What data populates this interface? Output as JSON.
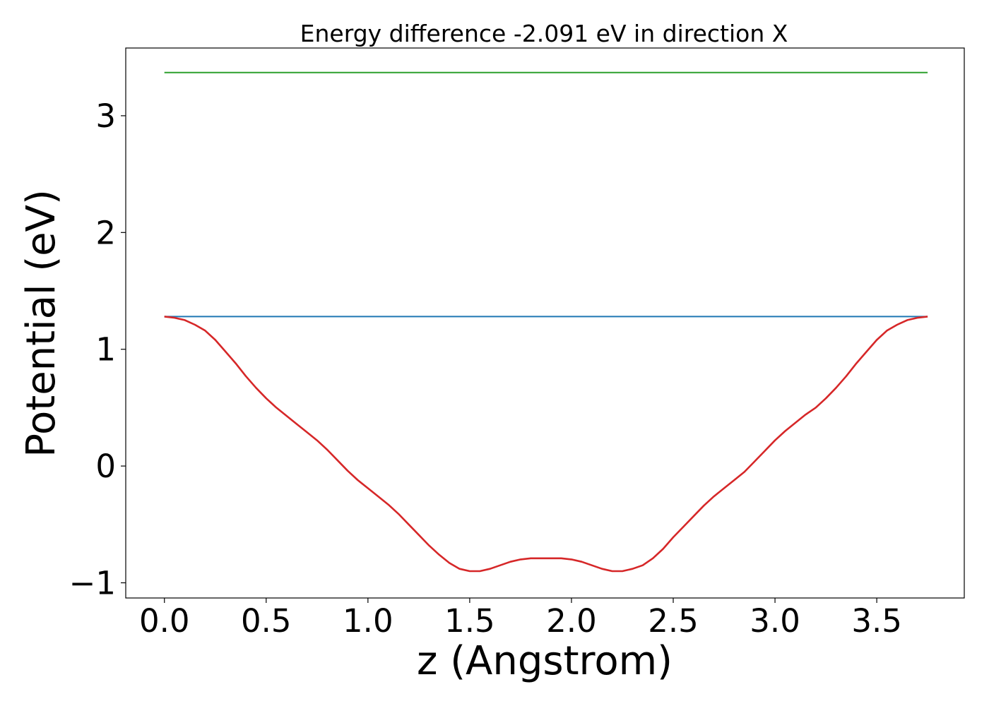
{
  "chart_data": {
    "type": "line",
    "title": "Energy difference -2.091 eV in direction X",
    "xlabel": "z (Angstrom)",
    "ylabel": "Potential (eV)",
    "xlim": [
      -0.19,
      3.93
    ],
    "ylim": [
      -1.13,
      3.58
    ],
    "xticks": [
      0.0,
      0.5,
      1.0,
      1.5,
      2.0,
      2.5,
      3.0,
      3.5
    ],
    "xtick_labels": [
      "0.0",
      "0.5",
      "1.0",
      "1.5",
      "2.0",
      "2.5",
      "3.0",
      "3.5"
    ],
    "yticks": [
      -1,
      0,
      1,
      2,
      3
    ],
    "ytick_labels": [
      "−1",
      "0",
      "1",
      "2",
      "3"
    ],
    "grid": false,
    "legend": "none",
    "series": [
      {
        "color": "#2ca02c",
        "x": [
          0.0,
          3.75
        ],
        "y": [
          3.37,
          3.37
        ]
      },
      {
        "color": "#1f77b4",
        "x": [
          0.0,
          3.75
        ],
        "y": [
          1.28,
          1.28
        ]
      },
      {
        "color": "#d62728",
        "x": [
          0.0,
          0.05,
          0.1,
          0.15,
          0.2,
          0.25,
          0.3,
          0.35,
          0.4,
          0.45,
          0.5,
          0.55,
          0.6,
          0.65,
          0.7,
          0.75,
          0.8,
          0.85,
          0.9,
          0.95,
          1.0,
          1.05,
          1.1,
          1.15,
          1.2,
          1.25,
          1.3,
          1.35,
          1.4,
          1.45,
          1.5,
          1.55,
          1.6,
          1.65,
          1.7,
          1.75,
          1.8,
          1.85,
          1.9,
          1.95,
          2.0,
          2.05,
          2.1,
          2.15,
          2.2,
          2.25,
          2.3,
          2.35,
          2.4,
          2.45,
          2.5,
          2.55,
          2.6,
          2.65,
          2.7,
          2.75,
          2.8,
          2.85,
          2.9,
          2.95,
          3.0,
          3.05,
          3.1,
          3.15,
          3.2,
          3.25,
          3.3,
          3.35,
          3.4,
          3.45,
          3.5,
          3.55,
          3.6,
          3.65,
          3.7,
          3.75
        ],
        "y": [
          1.28,
          1.27,
          1.25,
          1.21,
          1.16,
          1.08,
          0.98,
          0.88,
          0.77,
          0.67,
          0.58,
          0.5,
          0.43,
          0.36,
          0.29,
          0.22,
          0.14,
          0.05,
          -0.04,
          -0.12,
          -0.19,
          -0.26,
          -0.33,
          -0.41,
          -0.5,
          -0.59,
          -0.68,
          -0.76,
          -0.83,
          -0.88,
          -0.9,
          -0.9,
          -0.88,
          -0.85,
          -0.82,
          -0.8,
          -0.79,
          -0.79,
          -0.79,
          -0.79,
          -0.8,
          -0.82,
          -0.85,
          -0.88,
          -0.9,
          -0.9,
          -0.88,
          -0.85,
          -0.79,
          -0.71,
          -0.61,
          -0.52,
          -0.43,
          -0.34,
          -0.26,
          -0.19,
          -0.12,
          -0.05,
          0.04,
          0.13,
          0.22,
          0.3,
          0.37,
          0.44,
          0.5,
          0.58,
          0.67,
          0.77,
          0.88,
          0.98,
          1.08,
          1.16,
          1.21,
          1.25,
          1.27,
          1.28
        ]
      }
    ]
  }
}
